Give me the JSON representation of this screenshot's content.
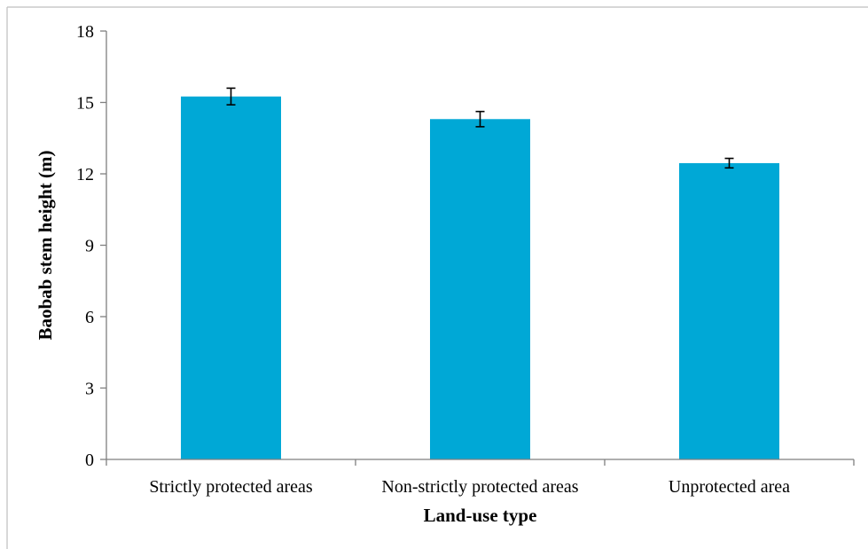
{
  "chart_data": {
    "type": "bar",
    "categories": [
      "Strictly protected areas",
      "Non-strictly protected areas",
      "Unprotected area"
    ],
    "values": [
      15.25,
      14.3,
      12.45
    ],
    "errors": [
      0.35,
      0.32,
      0.2
    ],
    "xlabel": "Land-use type",
    "ylabel": "Baobab stem height (m)",
    "ylim": [
      0,
      18
    ],
    "yticks": [
      0,
      3,
      6,
      9,
      12,
      15,
      18
    ],
    "grid": false,
    "legend": "none",
    "colors": {
      "bar": "#00A8D6",
      "axis": "#7F7F7F",
      "error": "#000000",
      "frame": "#BFBFBF"
    }
  }
}
